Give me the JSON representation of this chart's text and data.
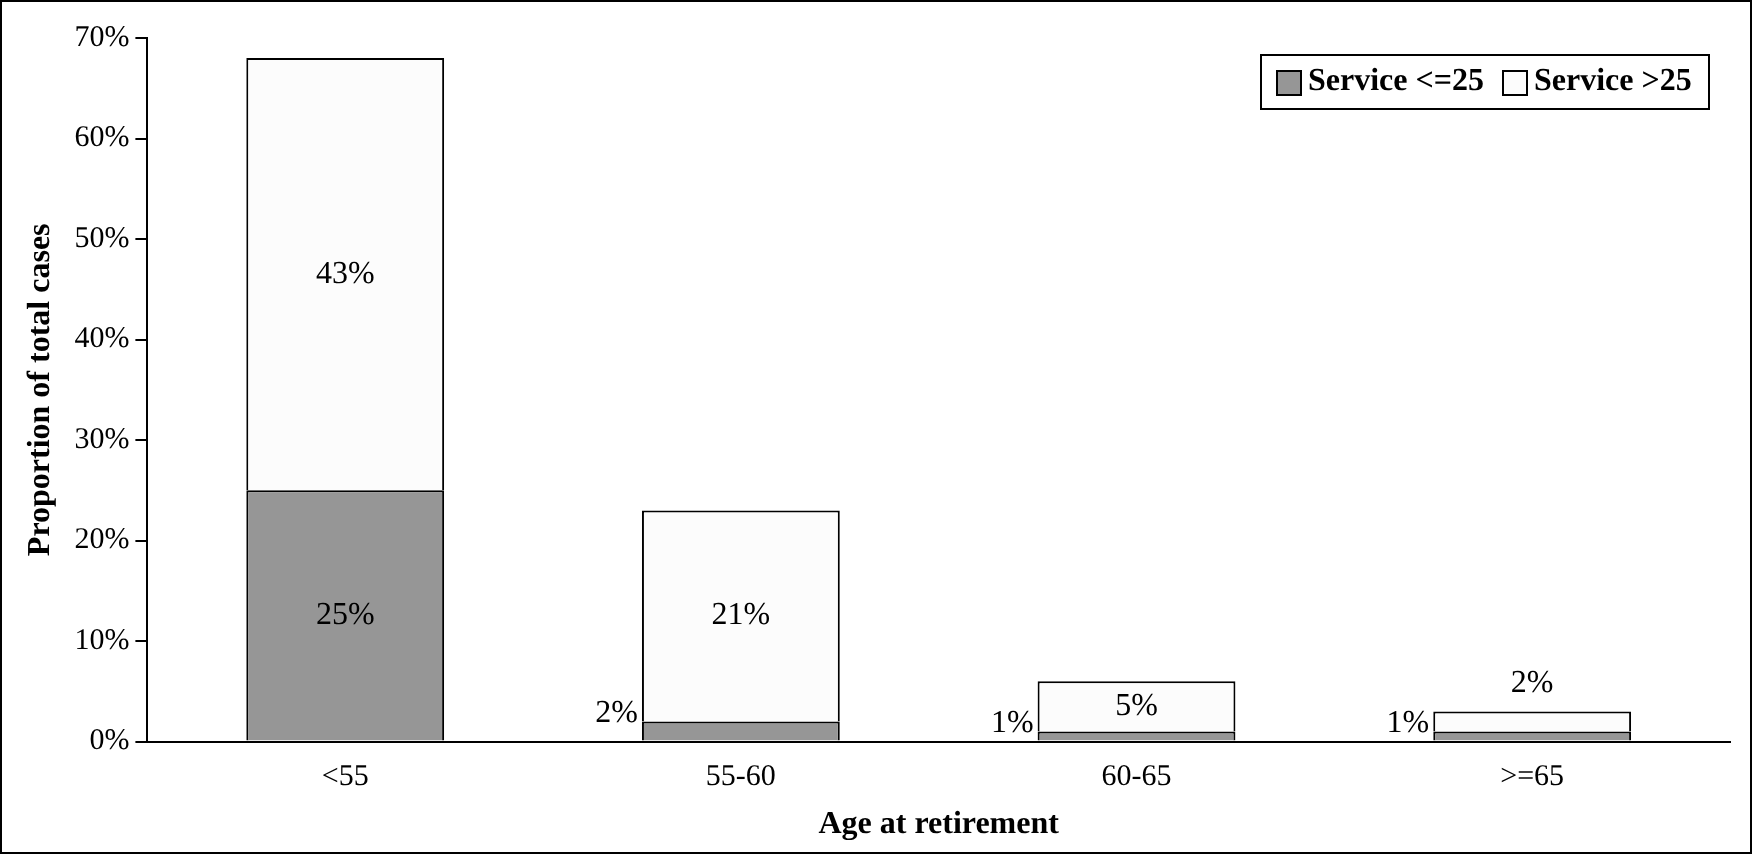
{
  "chart_data": {
    "type": "bar",
    "stacked": true,
    "xlabel": "Age at retirement",
    "ylabel": "Proportion of total cases",
    "categories": [
      "<55",
      "55-60",
      "60-65",
      ">=65"
    ],
    "series": [
      {
        "name": "Service <=25",
        "color": "#969696",
        "values": [
          25,
          2,
          1,
          1
        ],
        "value_labels": [
          "25%",
          "2%",
          "1%",
          "1%"
        ]
      },
      {
        "name": "Service >25",
        "color": "#fcfcfc",
        "values": [
          43,
          21,
          5,
          2
        ],
        "value_labels": [
          "43%",
          "21%",
          "5%",
          "2%"
        ]
      }
    ],
    "ylim": [
      0,
      70
    ],
    "yticks": [
      {
        "value": 0,
        "label": "0%"
      },
      {
        "value": 10,
        "label": "10%"
      },
      {
        "value": 20,
        "label": "20%"
      },
      {
        "value": 30,
        "label": "30%"
      },
      {
        "value": 40,
        "label": "40%"
      },
      {
        "value": 50,
        "label": "50%"
      },
      {
        "value": 60,
        "label": "60%"
      },
      {
        "value": 70,
        "label": "70%"
      }
    ],
    "grid": false,
    "legend": "top right"
  }
}
